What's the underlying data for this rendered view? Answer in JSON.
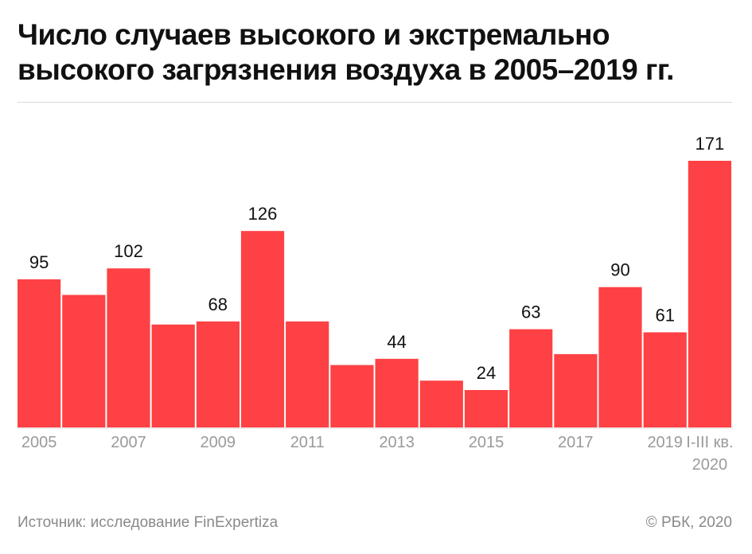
{
  "title": "Число случаев высокого и экстремально высокого загрязнения воздуха в 2005–2019 гг.",
  "source": "Источник: исследование FinExpertiza",
  "copyright": "© РБК, 2020",
  "colors": {
    "bar": "#fe4144",
    "axis": "#d9d9d9",
    "tick_text": "#9a9a9a",
    "label_text": "#111111"
  },
  "chart_data": {
    "type": "bar",
    "categories": [
      "2005",
      "2006",
      "2007",
      "2008",
      "2009",
      "2010",
      "2011",
      "2012",
      "2013",
      "2014",
      "2015",
      "2016",
      "2017",
      "2018",
      "2019",
      "I-III кв. 2020"
    ],
    "values": [
      95,
      85,
      102,
      66,
      68,
      126,
      68,
      40,
      44,
      30,
      24,
      63,
      47,
      90,
      61,
      171
    ],
    "data_labels": [
      "95",
      "",
      "102",
      "",
      "68",
      "126",
      "",
      "",
      "44",
      "",
      "24",
      "63",
      "",
      "90",
      "61",
      "171"
    ],
    "tick_labels": [
      "2005",
      "",
      "2007",
      "",
      "2009",
      "",
      "2011",
      "",
      "2013",
      "",
      "2015",
      "",
      "2017",
      "",
      "2019",
      "I-III кв.\n2020"
    ],
    "ylim": [
      0,
      171
    ],
    "grid": false,
    "legend": "none"
  }
}
